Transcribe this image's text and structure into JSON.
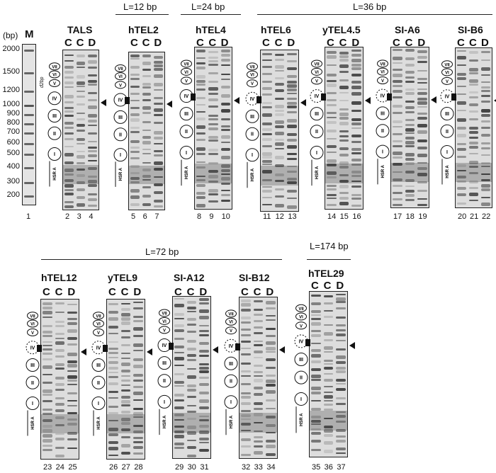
{
  "unit_label": "(bp)",
  "marker_lane_label": "M",
  "marker_sizes": [
    "2000",
    "1500",
    "1200",
    "1000",
    "900",
    "800",
    "700",
    "600",
    "500",
    "400",
    "300",
    "200"
  ],
  "marker_lane_number": "1",
  "annotations": {
    "roman": [
      "VII",
      "VI",
      "V",
      "IV",
      "III",
      "II",
      "I"
    ],
    "hsra": "HSR A",
    "delta_2bp": "d2bp"
  },
  "groups": [
    {
      "label": "L=12 bp"
    },
    {
      "label": "L=24 bp"
    },
    {
      "label": "L=36 bp"
    },
    {
      "label": "L=72 bp"
    },
    {
      "label": "L=174 bp"
    }
  ],
  "panels": [
    {
      "title": "TALS",
      "lanes": [
        "C",
        "C",
        "D"
      ],
      "numbers": [
        "2",
        "3",
        "4"
      ]
    },
    {
      "title": "hTEL2",
      "lanes": [
        "C",
        "C",
        "D"
      ],
      "numbers": [
        "5",
        "6",
        "7"
      ]
    },
    {
      "title": "hTEL4",
      "lanes": [
        "C",
        "C",
        "D"
      ],
      "numbers": [
        "8",
        "9",
        "10"
      ]
    },
    {
      "title": "hTEL6",
      "lanes": [
        "C",
        "C",
        "D"
      ],
      "numbers": [
        "11",
        "12",
        "13"
      ]
    },
    {
      "title": "yTEL4.5",
      "lanes": [
        "C",
        "C",
        "D"
      ],
      "numbers": [
        "14",
        "15",
        "16"
      ]
    },
    {
      "title": "SI-A6",
      "lanes": [
        "C",
        "C",
        "D"
      ],
      "numbers": [
        "17",
        "18",
        "19"
      ]
    },
    {
      "title": "SI-B6",
      "lanes": [
        "C",
        "C",
        "D"
      ],
      "numbers": [
        "20",
        "21",
        "22"
      ]
    },
    {
      "title": "hTEL12",
      "lanes": [
        "C",
        "C",
        "D"
      ],
      "numbers": [
        "23",
        "24",
        "25"
      ]
    },
    {
      "title": "yTEL9",
      "lanes": [
        "C",
        "C",
        "D"
      ],
      "numbers": [
        "26",
        "27",
        "28"
      ]
    },
    {
      "title": "SI-A12",
      "lanes": [
        "C",
        "C",
        "D"
      ],
      "numbers": [
        "29",
        "30",
        "31"
      ]
    },
    {
      "title": "SI-B12",
      "lanes": [
        "C",
        "C",
        "D"
      ],
      "numbers": [
        "32",
        "33",
        "34"
      ]
    },
    {
      "title": "hTEL29",
      "lanes": [
        "C",
        "C",
        "D"
      ],
      "numbers": [
        "35",
        "36",
        "37"
      ]
    }
  ]
}
